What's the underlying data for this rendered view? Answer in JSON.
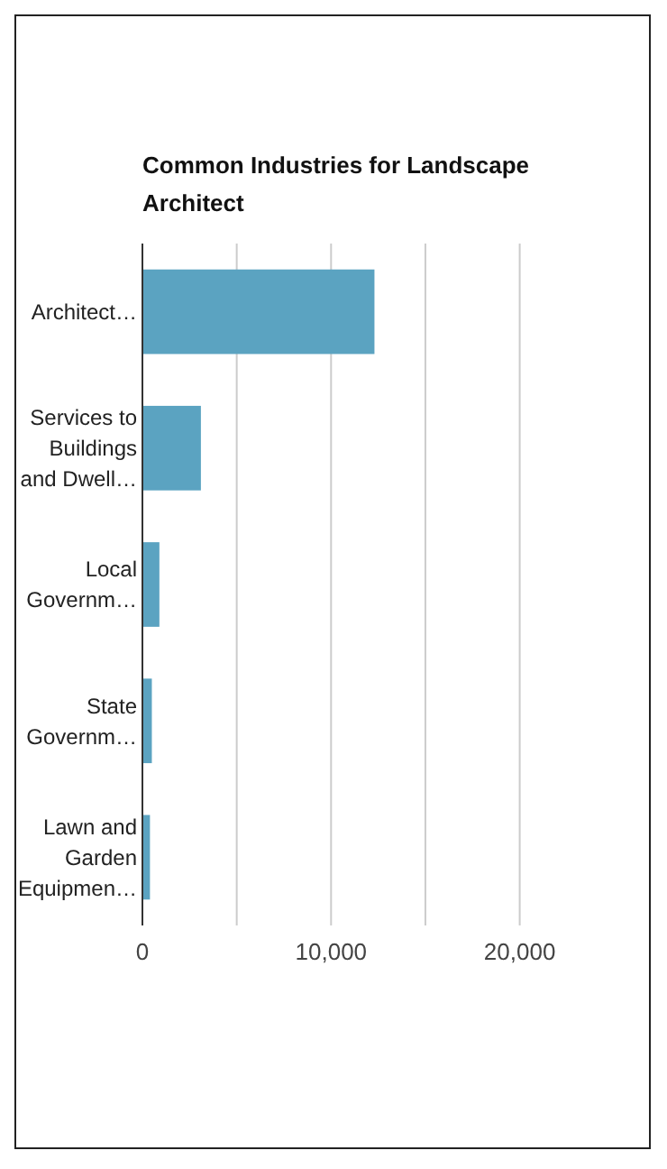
{
  "chart_data": {
    "type": "bar",
    "orientation": "horizontal",
    "title": "Common Industries for Landscape Architect",
    "categories": [
      "Architect…",
      "Services to Buildings and Dwell…",
      "Local Governm…",
      "State Governm…",
      "Lawn and Garden Equipmen…"
    ],
    "values": [
      12300,
      3100,
      900,
      500,
      400
    ],
    "color": "#5ba3c1",
    "xlim": [
      0,
      20000
    ],
    "xticks": [
      0,
      {
        "value": 5000,
        "label": null
      },
      {
        "value": 10000,
        "label": "10,000"
      },
      {
        "value": 15000,
        "label": null
      },
      {
        "value": 20000,
        "label": "20,000"
      }
    ],
    "grid": "x"
  }
}
